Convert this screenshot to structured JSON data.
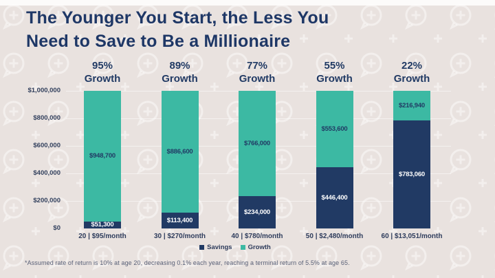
{
  "title": {
    "line1": "The Younger You Start, the Less You",
    "line2": "Need to Save to Be a Millionaire"
  },
  "footnote": "*Assumed rate of return is 10% at age 20, decreasing 0.1% each year, reaching a terminal return of 5.5% at age 65.",
  "colors": {
    "background": "#e9e2df",
    "savings": "#213a64",
    "growth": "#3cb9a3",
    "title_text": "#1e3766",
    "label_on_growth": "#213a64",
    "label_on_savings": "#ffffff"
  },
  "legend": [
    {
      "label": "Savings",
      "color": "#213a64"
    },
    {
      "label": "Growth",
      "color": "#3cb9a3"
    }
  ],
  "chart_data": {
    "type": "bar",
    "stacked": true,
    "title": "The Younger You Start, the Less You Need to Save to Be a Millionaire",
    "categories": [
      "20 | $95/month",
      "30 | $270/month",
      "40 | $780/month",
      "50 | $2,480/month",
      "60 | $13,051/month"
    ],
    "column_headers": [
      {
        "percent": "95%",
        "label": "Growth"
      },
      {
        "percent": "89%",
        "label": "Growth"
      },
      {
        "percent": "77%",
        "label": "Growth"
      },
      {
        "percent": "55%",
        "label": "Growth"
      },
      {
        "percent": "22%",
        "label": "Growth"
      }
    ],
    "series": [
      {
        "name": "Savings",
        "values": [
          51300,
          113400,
          234000,
          446400,
          783060
        ],
        "labels": [
          "$51,300",
          "$113,400",
          "$234,000",
          "$446,400",
          "$783,060"
        ]
      },
      {
        "name": "Growth",
        "values": [
          948700,
          886600,
          766000,
          553600,
          216940
        ],
        "labels": [
          "$948,700",
          "$886,600",
          "$766,000",
          "$553,600",
          "$216,940"
        ]
      }
    ],
    "y_ticks": [
      "$1,000,000",
      "$800,000",
      "$600,000",
      "$400,000",
      "$200,000",
      "$0"
    ],
    "y_tick_values": [
      1000000,
      800000,
      600000,
      400000,
      200000,
      0
    ],
    "ylim": [
      0,
      1000000
    ],
    "grid": true,
    "legend_position": "bottom"
  }
}
